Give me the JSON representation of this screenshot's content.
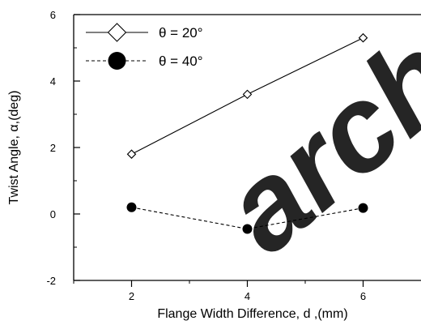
{
  "chart_data": {
    "type": "line",
    "xlabel": "Flange Width Difference, d ,(mm)",
    "ylabel": "Twist Angle, α,(deg)",
    "xlim": [
      1,
      7
    ],
    "ylim": [
      -2,
      6
    ],
    "xticks": [
      2,
      4,
      6
    ],
    "yticks": [
      -2,
      0,
      2,
      4,
      6
    ],
    "grid": false,
    "legend": "top-left",
    "series": [
      {
        "name": "θ = 20°",
        "marker": "open-diamond",
        "line": "solid",
        "x": [
          2,
          4,
          6
        ],
        "y": [
          1.8,
          3.6,
          5.3
        ]
      },
      {
        "name": "θ = 40°",
        "marker": "filled-circle",
        "line": "dashed",
        "x": [
          2,
          4,
          6
        ],
        "y": [
          0.2,
          -0.45,
          0.18
        ]
      }
    ]
  },
  "watermark": {
    "text": "archive",
    "color": "#c8c8c8"
  }
}
